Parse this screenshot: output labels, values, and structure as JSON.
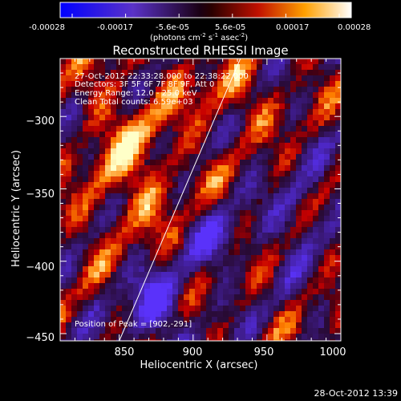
{
  "colorbar": {
    "ticks": [
      "-0.00028",
      "-0.00017",
      "-5.6e-05",
      "5.6e-05",
      "0.00017",
      "0.00028"
    ],
    "unit": "(photons cm",
    "unit_sup1": "-2",
    "unit_mid": " s",
    "unit_sup2": "-1",
    "unit_end": " asec",
    "unit_sup3": "-2",
    "unit_close": ")",
    "min": -0.00028,
    "max": 0.00028
  },
  "chart_data": {
    "type": "heatmap",
    "title": "Reconstructed RHESSI Image",
    "xlabel": "Heliocentric X (arcsec)",
    "ylabel": "Heliocentric Y (arcsec)",
    "xlim": [
      810,
      1000
    ],
    "ylim": [
      -455,
      -260
    ],
    "xticks": [
      850,
      900,
      950,
      1000
    ],
    "xtick_labels": [
      "850",
      "900",
      "950",
      "1000"
    ],
    "yticks": [
      -450,
      -400,
      -350,
      -300
    ],
    "ytick_labels": [
      "−450",
      "−400",
      "−350",
      "−300"
    ],
    "annotations": {
      "line1": "27-Oct-2012 22:33:28.000 to 22:38:22.000",
      "line2": "Detectors: 3F 5F 6F 7F 8F 9F, Att 0",
      "line3": "Energy Range: 12.0 - 25.0 keV",
      "line4": "Clean    Total counts: 6.59e+03",
      "peak": "Position of Peak = [902,-291]"
    },
    "limb_line": {
      "x": [
        850,
        932
      ],
      "y": [
        -455,
        -260
      ]
    },
    "grid": false
  },
  "footer": {
    "timestamp": "28-Oct-2012 13:39"
  },
  "colors": {
    "background": "#000000",
    "axis": "#ffffff"
  }
}
